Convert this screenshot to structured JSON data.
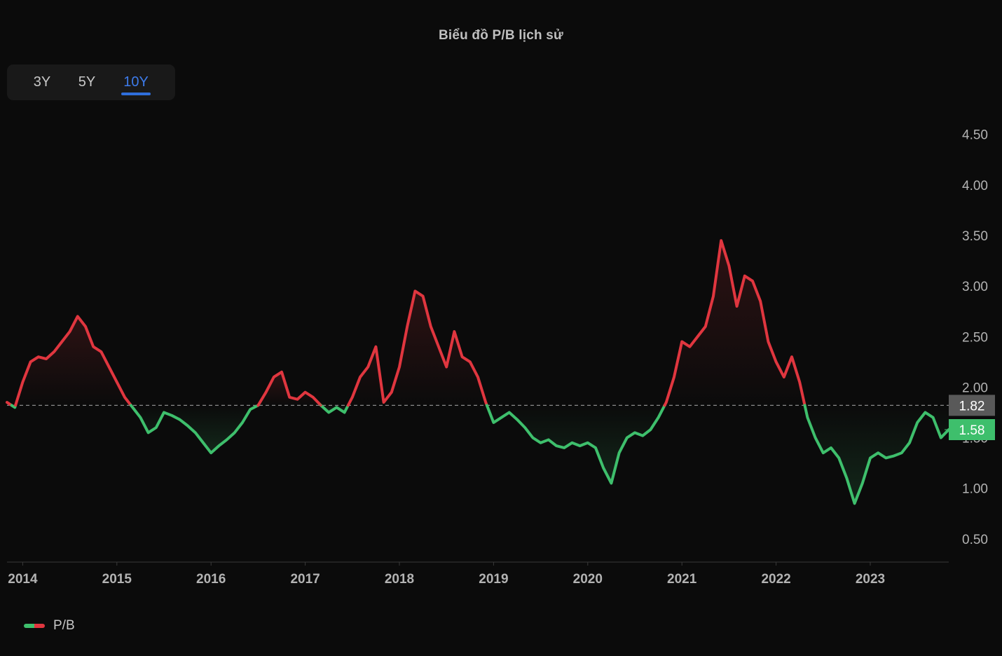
{
  "title": "Biểu đồ P/B lịch sử",
  "range_tabs": [
    {
      "label": "3Y",
      "active": false
    },
    {
      "label": "5Y",
      "active": false
    },
    {
      "label": "10Y",
      "active": true
    }
  ],
  "legend": {
    "label": "P/B"
  },
  "colors": {
    "above": "#e0363f",
    "below": "#3ebf6c",
    "reference_label_bg": "#595959",
    "current_label_bg": "#3ebf6c",
    "active_tab": "#3d7bea"
  },
  "chart_data": {
    "type": "line",
    "title": "Biểu đồ P/B lịch sử",
    "series": [
      {
        "name": "P/B",
        "x": [
          "2013-11",
          "2013-12",
          "2014-01",
          "2014-02",
          "2014-03",
          "2014-04",
          "2014-05",
          "2014-06",
          "2014-07",
          "2014-08",
          "2014-09",
          "2014-10",
          "2014-11",
          "2014-12",
          "2015-01",
          "2015-02",
          "2015-03",
          "2015-04",
          "2015-05",
          "2015-06",
          "2015-07",
          "2015-08",
          "2015-09",
          "2015-10",
          "2015-11",
          "2015-12",
          "2016-01",
          "2016-02",
          "2016-03",
          "2016-04",
          "2016-05",
          "2016-06",
          "2016-07",
          "2016-08",
          "2016-09",
          "2016-10",
          "2016-11",
          "2016-12",
          "2017-01",
          "2017-02",
          "2017-03",
          "2017-04",
          "2017-05",
          "2017-06",
          "2017-07",
          "2017-08",
          "2017-09",
          "2017-10",
          "2017-11",
          "2017-12",
          "2018-01",
          "2018-02",
          "2018-03",
          "2018-04",
          "2018-05",
          "2018-06",
          "2018-07",
          "2018-08",
          "2018-09",
          "2018-10",
          "2018-11",
          "2018-12",
          "2019-01",
          "2019-02",
          "2019-03",
          "2019-04",
          "2019-05",
          "2019-06",
          "2019-07",
          "2019-08",
          "2019-09",
          "2019-10",
          "2019-11",
          "2019-12",
          "2020-01",
          "2020-02",
          "2020-03",
          "2020-04",
          "2020-05",
          "2020-06",
          "2020-07",
          "2020-08",
          "2020-09",
          "2020-10",
          "2020-11",
          "2020-12",
          "2021-01",
          "2021-02",
          "2021-03",
          "2021-04",
          "2021-05",
          "2021-06",
          "2021-07",
          "2021-08",
          "2021-09",
          "2021-10",
          "2021-11",
          "2021-12",
          "2022-01",
          "2022-02",
          "2022-03",
          "2022-04",
          "2022-05",
          "2022-06",
          "2022-07",
          "2022-08",
          "2022-09",
          "2022-10",
          "2022-11",
          "2022-12",
          "2023-01",
          "2023-02",
          "2023-03",
          "2023-04",
          "2023-05",
          "2023-06",
          "2023-07",
          "2023-08",
          "2023-09",
          "2023-10",
          "2023-11"
        ],
        "values": [
          1.85,
          1.8,
          2.05,
          2.25,
          2.3,
          2.28,
          2.35,
          2.45,
          2.55,
          2.7,
          2.6,
          2.4,
          2.35,
          2.2,
          2.05,
          1.9,
          1.8,
          1.7,
          1.55,
          1.6,
          1.75,
          1.72,
          1.68,
          1.62,
          1.55,
          1.45,
          1.35,
          1.42,
          1.48,
          1.55,
          1.65,
          1.78,
          1.82,
          1.95,
          2.1,
          2.15,
          1.9,
          1.88,
          1.95,
          1.9,
          1.82,
          1.75,
          1.8,
          1.75,
          1.9,
          2.1,
          2.2,
          2.4,
          1.85,
          1.95,
          2.2,
          2.6,
          2.95,
          2.9,
          2.6,
          2.4,
          2.2,
          2.55,
          2.3,
          2.25,
          2.1,
          1.85,
          1.65,
          1.7,
          1.75,
          1.68,
          1.6,
          1.5,
          1.45,
          1.48,
          1.42,
          1.4,
          1.45,
          1.42,
          1.45,
          1.4,
          1.2,
          1.05,
          1.35,
          1.5,
          1.55,
          1.52,
          1.58,
          1.7,
          1.85,
          2.1,
          2.45,
          2.4,
          2.5,
          2.6,
          2.9,
          3.45,
          3.2,
          2.8,
          3.1,
          3.05,
          2.85,
          2.45,
          2.25,
          2.1,
          2.3,
          2.05,
          1.7,
          1.5,
          1.35,
          1.4,
          1.3,
          1.1,
          0.85,
          1.05,
          1.3,
          1.35,
          1.3,
          1.32,
          1.35,
          1.45,
          1.65,
          1.75,
          1.7,
          1.5,
          1.58
        ]
      }
    ],
    "reference_value": 1.82,
    "current_value": 1.58,
    "x_tick_labels": [
      "2014",
      "2015",
      "2016",
      "2017",
      "2018",
      "2019",
      "2020",
      "2021",
      "2022",
      "2023"
    ],
    "y_ticks": [
      0.5,
      1.0,
      1.5,
      2.0,
      2.5,
      3.0,
      3.5,
      4.0,
      4.5
    ],
    "y_tick_labels": [
      "0.50",
      "1.00",
      "1.50",
      "2.00",
      "2.50",
      "3.00",
      "3.50",
      "4.00",
      "4.50"
    ],
    "reference_label": "1.82",
    "current_label": "1.58",
    "ylim": [
      0.27,
      4.72
    ],
    "xlim": [
      "2013-11",
      "2023-11"
    ],
    "y_axis_position": "right",
    "grid": false,
    "legend_position": "bottom-left"
  }
}
